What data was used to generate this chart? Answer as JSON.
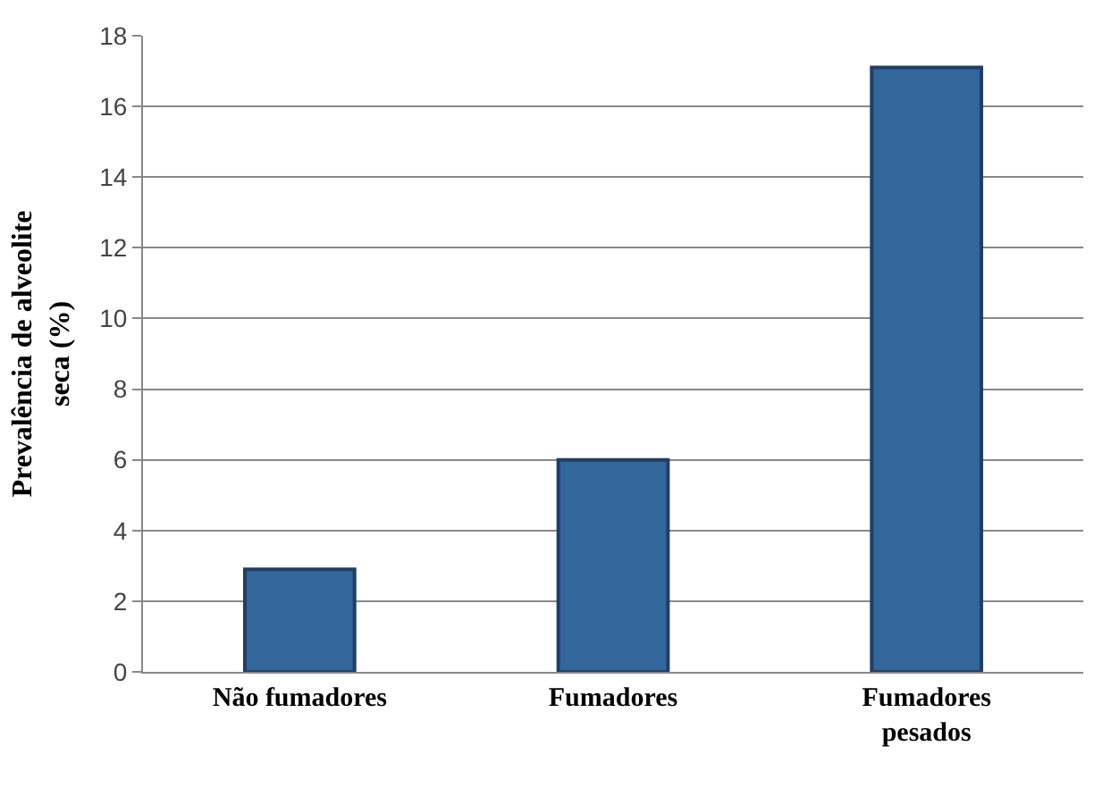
{
  "chart_data": {
    "type": "bar",
    "ylabel": "Prevalência de alveolite seca (%)",
    "categories": [
      "Não fumadores",
      "Fumadores",
      "Fumadores pesados"
    ],
    "values": [
      2.9,
      6.0,
      17.1
    ],
    "color": "#336699",
    "ylim": [
      0,
      18
    ],
    "yticks": [
      0,
      2,
      4,
      6,
      8,
      10,
      12,
      14,
      16,
      18
    ],
    "grid": "y"
  }
}
